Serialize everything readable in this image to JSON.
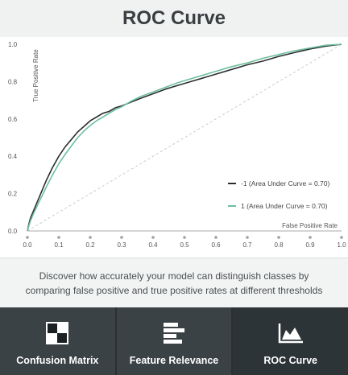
{
  "header": {
    "title": "ROC Curve"
  },
  "description": "Discover how accurately your model can distinguish classes by comparing false positive and true positive rates at different thresholds",
  "tabs": [
    {
      "label": "Confusion Matrix",
      "icon": "confusion-matrix-icon",
      "active": false
    },
    {
      "label": "Feature Relevance",
      "icon": "feature-relevance-icon",
      "active": false
    },
    {
      "label": "ROC Curve",
      "icon": "roc-curve-icon",
      "active": true
    }
  ],
  "colors": {
    "series_neg": "#2b2f31",
    "series_pos": "#6dbf9c",
    "diagonal": "#c8cccc",
    "axis_text": "#555555",
    "tab_bg": "#3a4246",
    "tab_active_bg": "#2d3438"
  },
  "chart_data": {
    "type": "line",
    "xlabel": "False Positive Rate",
    "ylabel": "True Positive Rate",
    "xlim": [
      0,
      1
    ],
    "ylim": [
      0,
      1
    ],
    "x_ticks": [
      "0.0",
      "0.1",
      "0.2",
      "0.3",
      "0.4",
      "0.5",
      "0.6",
      "0.7",
      "0.8",
      "0.9",
      "1.0"
    ],
    "y_ticks": [
      "0.0",
      "0.2",
      "0.4",
      "0.6",
      "0.8",
      "1.0"
    ],
    "legend_position": "bottom-right",
    "series": [
      {
        "name": "-1 (Area Under Curve = 0.70)",
        "x": [
          0,
          0.005,
          0.01,
          0.02,
          0.03,
          0.04,
          0.05,
          0.06,
          0.08,
          0.1,
          0.12,
          0.14,
          0.16,
          0.18,
          0.2,
          0.22,
          0.24,
          0.26,
          0.28,
          0.3,
          0.33,
          0.36,
          0.4,
          0.44,
          0.48,
          0.52,
          0.56,
          0.6,
          0.65,
          0.7,
          0.75,
          0.8,
          0.85,
          0.9,
          0.95,
          1.0
        ],
        "y": [
          0,
          0.04,
          0.07,
          0.11,
          0.15,
          0.19,
          0.23,
          0.27,
          0.34,
          0.4,
          0.45,
          0.49,
          0.53,
          0.56,
          0.59,
          0.61,
          0.63,
          0.64,
          0.66,
          0.67,
          0.69,
          0.71,
          0.735,
          0.76,
          0.78,
          0.8,
          0.82,
          0.84,
          0.865,
          0.89,
          0.91,
          0.935,
          0.955,
          0.975,
          0.99,
          1.0
        ]
      },
      {
        "name": "1 (Area Under Curve = 0.70)",
        "x": [
          0,
          0.005,
          0.01,
          0.02,
          0.03,
          0.04,
          0.05,
          0.06,
          0.08,
          0.1,
          0.12,
          0.14,
          0.16,
          0.18,
          0.2,
          0.22,
          0.24,
          0.26,
          0.28,
          0.3,
          0.33,
          0.36,
          0.4,
          0.44,
          0.48,
          0.52,
          0.56,
          0.6,
          0.65,
          0.7,
          0.75,
          0.8,
          0.85,
          0.9,
          0.95,
          1.0
        ],
        "y": [
          0,
          0.03,
          0.055,
          0.095,
          0.13,
          0.165,
          0.2,
          0.235,
          0.3,
          0.36,
          0.41,
          0.455,
          0.5,
          0.535,
          0.565,
          0.59,
          0.61,
          0.63,
          0.65,
          0.665,
          0.695,
          0.72,
          0.745,
          0.77,
          0.795,
          0.815,
          0.835,
          0.855,
          0.88,
          0.9,
          0.925,
          0.945,
          0.965,
          0.98,
          0.995,
          1.0
        ]
      }
    ]
  }
}
